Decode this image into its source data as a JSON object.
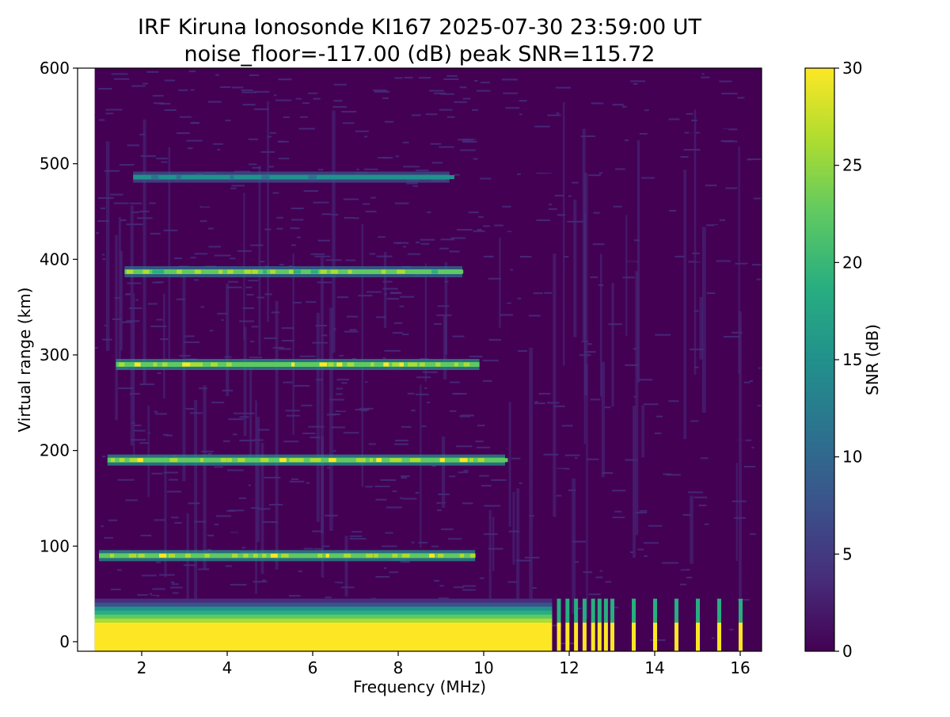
{
  "chart_data": {
    "type": "heatmap",
    "title": "IRF Kiruna Ionosonde KI167 2025-07-30 23:59:00  UT",
    "subtitle": "noise_floor=-117.00 (dB) peak SNR=115.72",
    "xlabel": "Frequency (MHz)",
    "ylabel": "Virtual range (km)",
    "xlim": [
      0.5,
      16.5
    ],
    "ylim": [
      -10,
      600
    ],
    "x_ticks": [
      2,
      4,
      6,
      8,
      10,
      12,
      14,
      16
    ],
    "y_ticks": [
      0,
      100,
      200,
      300,
      400,
      500,
      600
    ],
    "colorbar": {
      "label": "SNR (dB)",
      "range": [
        0,
        30
      ],
      "ticks": [
        0,
        5,
        10,
        15,
        20,
        25,
        30
      ],
      "colormap": "viridis"
    },
    "data_extent_mhz": [
      0.9,
      16.5
    ],
    "ground_clutter": {
      "freq_range_mhz": [
        0.9,
        11.6
      ],
      "saturated_top_km": 20,
      "fade_top_km": 45,
      "snr": 30
    },
    "echo_traces": [
      {
        "range_km": 90,
        "freq_start_mhz": 1.0,
        "freq_end_mhz": 9.8,
        "peak_snr": 30
      },
      {
        "range_km": 190,
        "freq_start_mhz": 1.2,
        "freq_end_mhz": 10.5,
        "peak_snr": 30
      },
      {
        "range_km": 290,
        "freq_start_mhz": 1.4,
        "freq_end_mhz": 9.9,
        "peak_snr": 30
      },
      {
        "range_km": 387,
        "freq_start_mhz": 1.6,
        "freq_end_mhz": 9.5,
        "peak_snr": 28
      },
      {
        "range_km": 486,
        "freq_start_mhz": 1.8,
        "freq_end_mhz": 9.2,
        "peak_snr": 17
      }
    ],
    "discrete_channels_mhz": [
      11.75,
      11.95,
      12.15,
      12.35,
      12.55,
      12.7,
      12.85,
      13.0,
      13.5,
      14.0,
      14.5,
      15.0,
      15.5,
      16.0
    ]
  }
}
